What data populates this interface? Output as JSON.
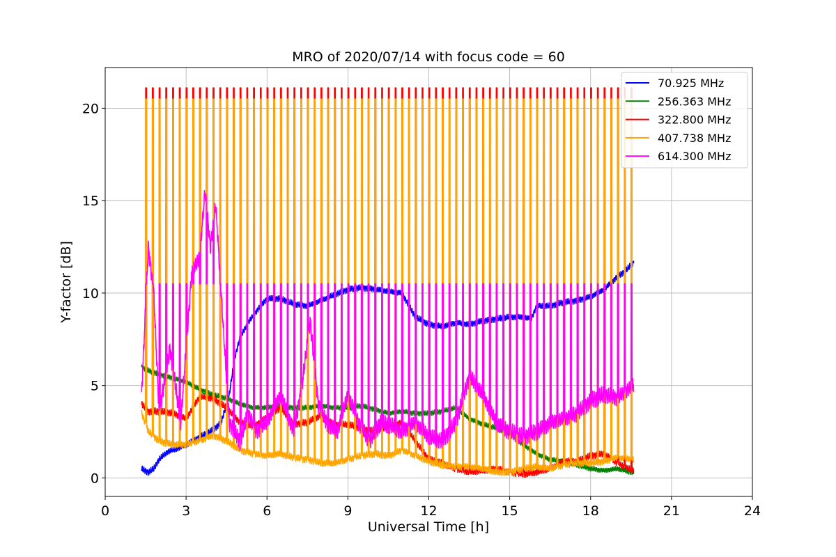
{
  "chart_data": {
    "type": "line",
    "title": "MRO of 2020/07/14 with focus code = 60",
    "xlabel": "Universal Time [h]",
    "ylabel": "Y-factor [dB]",
    "xlim": [
      0,
      24
    ],
    "ylim": [
      -1.0,
      22.2
    ],
    "xticks": [
      0,
      3,
      6,
      9,
      12,
      15,
      18,
      21,
      24
    ],
    "yticks": [
      0,
      5,
      10,
      15,
      20
    ],
    "grid": true,
    "legend_position": "top-right",
    "x_range_data": [
      1.35,
      19.6
    ],
    "calibration_spikes": {
      "period_h": 0.25,
      "start_h": 1.5,
      "end_h": 19.6,
      "red_peak": 21.1,
      "orange_peak": 20.5,
      "magenta_peak": 10.5
    },
    "series": [
      {
        "name": " 70.925 MHz",
        "color": "#0000ff",
        "x": [
          1.35,
          1.6,
          1.8,
          2.0,
          2.3,
          2.7,
          3.0,
          3.5,
          4.0,
          4.3,
          4.6,
          4.8,
          5.0,
          5.3,
          5.7,
          6.0,
          6.5,
          7.0,
          7.5,
          8.0,
          8.5,
          9.0,
          9.5,
          10.0,
          10.5,
          11.0,
          11.5,
          12.0,
          12.5,
          13.0,
          13.5,
          14.0,
          14.5,
          15.0,
          15.5,
          15.8,
          16.0,
          16.5,
          17.0,
          17.5,
          18.0,
          18.5,
          19.0,
          19.3,
          19.55
        ],
        "y": [
          0.5,
          0.3,
          0.5,
          1.0,
          1.4,
          1.6,
          1.8,
          2.2,
          2.6,
          3.0,
          4.5,
          6.5,
          7.6,
          8.4,
          9.2,
          9.7,
          9.7,
          9.4,
          9.3,
          9.6,
          9.9,
          10.2,
          10.3,
          10.2,
          10.1,
          10.0,
          8.7,
          8.3,
          8.2,
          8.4,
          8.3,
          8.5,
          8.6,
          8.7,
          8.7,
          8.6,
          9.3,
          9.3,
          9.5,
          9.6,
          9.8,
          10.2,
          10.9,
          11.2,
          11.6
        ]
      },
      {
        "name": "256.363 MHz",
        "color": "#008000",
        "x": [
          1.35,
          1.6,
          2.0,
          2.5,
          3.0,
          3.5,
          4.0,
          4.5,
          5.0,
          5.5,
          6.0,
          6.5,
          7.0,
          7.5,
          8.0,
          8.5,
          9.0,
          9.5,
          10.0,
          10.5,
          11.0,
          11.5,
          12.0,
          12.5,
          13.0,
          13.5,
          14.0,
          14.5,
          15.0,
          15.5,
          16.0,
          16.5,
          17.0,
          17.5,
          18.0,
          18.5,
          19.0,
          19.55
        ],
        "y": [
          6.0,
          5.8,
          5.6,
          5.4,
          5.2,
          4.8,
          4.5,
          4.3,
          4.0,
          3.8,
          3.8,
          3.9,
          3.8,
          3.8,
          3.9,
          3.8,
          3.8,
          3.9,
          3.7,
          3.5,
          3.6,
          3.5,
          3.5,
          3.6,
          3.8,
          3.2,
          2.9,
          2.7,
          2.4,
          1.8,
          1.3,
          1.0,
          0.9,
          0.7,
          0.5,
          0.4,
          0.5,
          0.3
        ]
      },
      {
        "name": "322.800 MHz",
        "color": "#ff0000",
        "x": [
          1.35,
          1.6,
          2.0,
          2.5,
          3.0,
          3.5,
          4.0,
          4.5,
          5.0,
          5.5,
          6.0,
          6.5,
          7.0,
          7.5,
          8.0,
          8.5,
          9.0,
          9.5,
          10.0,
          10.5,
          11.0,
          11.5,
          12.0,
          12.5,
          13.0,
          13.5,
          14.0,
          14.5,
          15.0,
          15.5,
          16.0,
          16.5,
          17.0,
          17.5,
          18.0,
          18.5,
          19.0,
          19.55
        ],
        "y": [
          4.0,
          3.6,
          3.6,
          3.5,
          3.2,
          4.4,
          4.3,
          3.8,
          3.0,
          2.8,
          3.3,
          3.8,
          2.9,
          3.0,
          3.4,
          2.9,
          2.9,
          2.7,
          2.5,
          2.8,
          3.0,
          2.0,
          1.0,
          0.8,
          0.5,
          0.3,
          0.4,
          0.5,
          0.3,
          0.2,
          0.3,
          0.5,
          0.9,
          0.9,
          1.2,
          1.3,
          0.8,
          0.4
        ]
      },
      {
        "name": "407.738 MHz",
        "color": "#ffa500",
        "x": [
          1.35,
          1.6,
          2.0,
          2.5,
          3.0,
          3.5,
          4.0,
          4.5,
          5.0,
          5.5,
          6.0,
          6.5,
          7.0,
          7.5,
          8.0,
          8.5,
          9.0,
          9.5,
          10.0,
          10.5,
          11.0,
          11.5,
          12.0,
          12.5,
          13.0,
          13.5,
          14.0,
          14.5,
          15.0,
          15.5,
          16.0,
          16.5,
          17.0,
          17.5,
          18.0,
          18.5,
          19.0,
          19.55
        ],
        "y": [
          3.5,
          2.5,
          2.0,
          1.8,
          1.8,
          2.0,
          2.3,
          2.0,
          1.5,
          1.3,
          1.2,
          1.3,
          1.1,
          1.0,
          0.8,
          0.8,
          1.0,
          1.2,
          1.3,
          1.2,
          1.5,
          1.2,
          0.9,
          0.7,
          0.6,
          0.6,
          0.5,
          0.3,
          0.3,
          0.5,
          0.6,
          0.5,
          0.7,
          0.8,
          0.8,
          0.9,
          1.1,
          1.0
        ]
      },
      {
        "name": "614.300 MHz",
        "color": "#ff00ff",
        "x": [
          1.35,
          1.6,
          1.8,
          2.0,
          2.4,
          2.8,
          3.2,
          3.5,
          3.7,
          3.9,
          4.1,
          4.3,
          4.6,
          5.0,
          5.3,
          5.6,
          6.0,
          6.5,
          7.0,
          7.3,
          7.6,
          7.9,
          8.2,
          8.6,
          9.0,
          9.4,
          9.8,
          10.2,
          10.6,
          11.0,
          11.5,
          12.0,
          12.5,
          13.0,
          13.5,
          14.0,
          14.5,
          15.0,
          15.5,
          16.0,
          16.5,
          17.0,
          17.5,
          18.0,
          18.5,
          19.0,
          19.55
        ],
        "y": [
          4.5,
          12.5,
          10.0,
          3.5,
          7.0,
          3.0,
          11.0,
          12.0,
          15.5,
          12.5,
          14.8,
          10.0,
          3.0,
          2.0,
          3.5,
          2.5,
          3.0,
          4.5,
          2.5,
          5.0,
          8.5,
          4.0,
          3.0,
          2.5,
          4.5,
          3.0,
          2.0,
          3.0,
          2.8,
          2.5,
          3.0,
          2.2,
          2.0,
          3.0,
          5.5,
          4.5,
          3.0,
          2.5,
          2.2,
          2.5,
          3.0,
          3.2,
          3.5,
          4.2,
          4.5,
          4.3,
          5.0
        ]
      }
    ]
  }
}
